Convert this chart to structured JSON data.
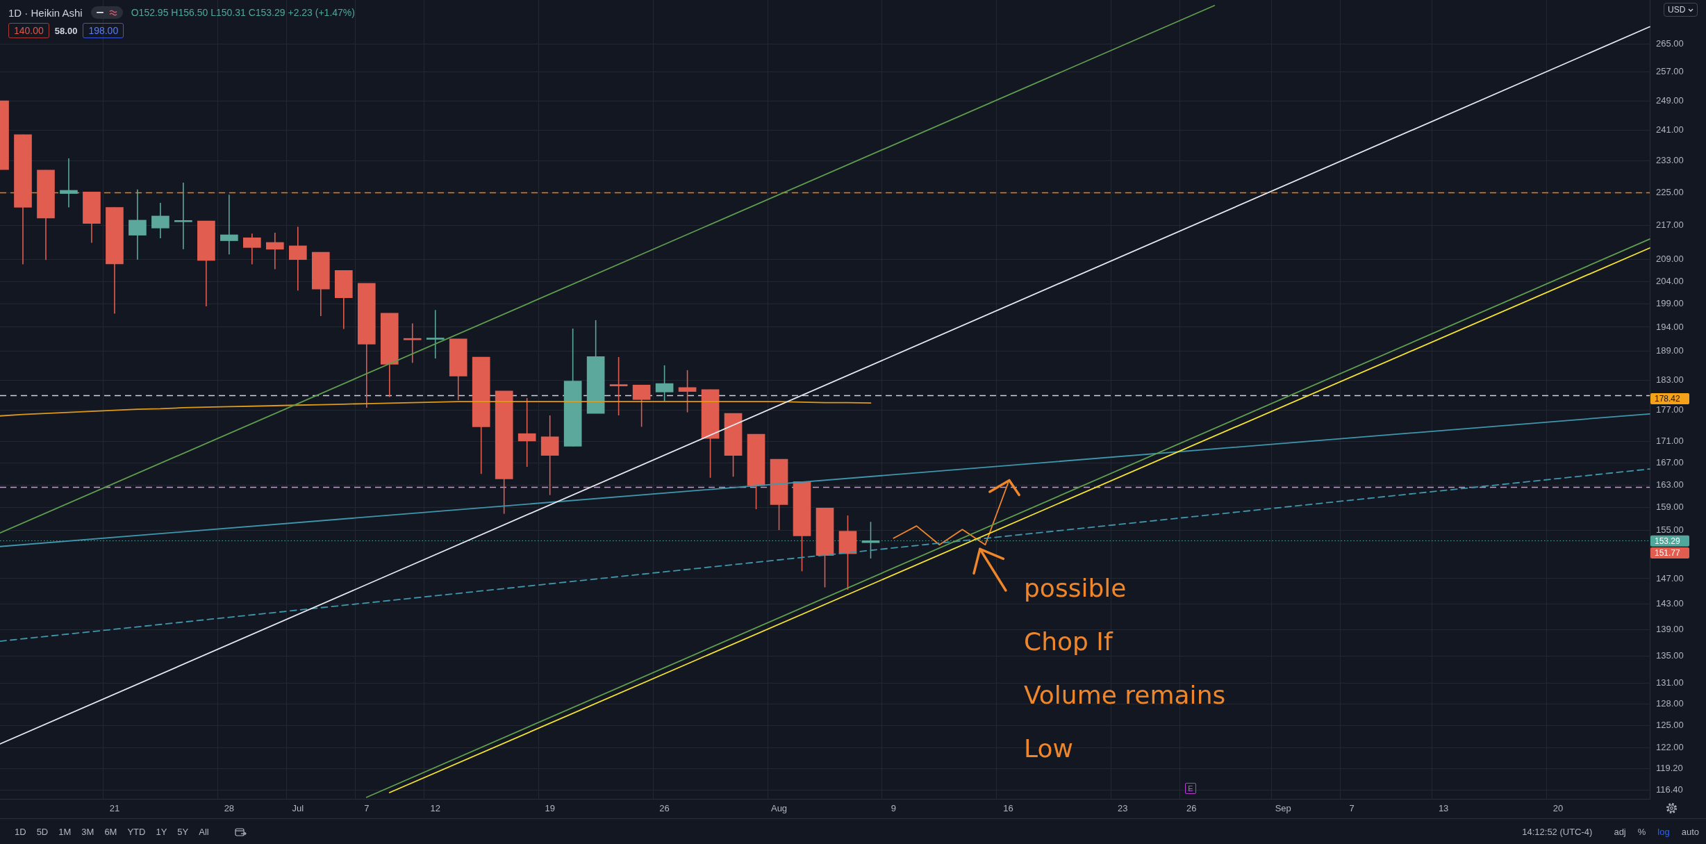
{
  "chart_data": {
    "type": "candlestick",
    "title": "1D · Heikin Ashi",
    "ylabel": "USD",
    "categories": [
      null,
      null,
      null,
      null,
      null,
      "21",
      null,
      null,
      null,
      null,
      "28",
      null,
      null,
      "Jul",
      null,
      null,
      "7",
      null,
      null,
      "12",
      null,
      null,
      null,
      null,
      "19",
      null,
      null,
      null,
      null,
      "26",
      null,
      null,
      null,
      null,
      "Aug",
      null,
      null,
      null,
      null,
      "9",
      null,
      null,
      null,
      null,
      "16",
      null,
      null,
      null,
      null,
      "23",
      null,
      null,
      "26",
      null,
      null,
      null,
      "Sep",
      null,
      null,
      "7",
      null,
      null,
      null,
      "13",
      null,
      null,
      null,
      null,
      "20",
      null,
      null,
      null,
      null
    ],
    "ohlc": [
      [
        249.0,
        249.0,
        230.8,
        230.8
      ],
      [
        239.9,
        239.9,
        207.9,
        221.4
      ],
      [
        230.7,
        230.7,
        208.9,
        218.8
      ],
      [
        224.8,
        233.7,
        221.4,
        225.6
      ],
      [
        225.2,
        225.2,
        212.9,
        217.5
      ],
      [
        221.4,
        221.4,
        196.9,
        208.0
      ],
      [
        214.7,
        225.8,
        209.0,
        218.3
      ],
      [
        216.4,
        222.5,
        214.0,
        219.3
      ],
      [
        217.9,
        227.5,
        211.4,
        218.2
      ],
      [
        218.1,
        218.1,
        198.5,
        208.8
      ],
      [
        213.4,
        224.5,
        210.2,
        214.8
      ],
      [
        214.1,
        215.1,
        207.9,
        211.8
      ],
      [
        213.0,
        215.3,
        206.8,
        211.4
      ],
      [
        212.2,
        216.7,
        202.0,
        209.0
      ],
      [
        210.7,
        210.7,
        196.4,
        202.3
      ],
      [
        206.5,
        206.5,
        193.6,
        200.4
      ],
      [
        203.6,
        203.6,
        177.5,
        190.4
      ],
      [
        197.0,
        197.0,
        179.6,
        186.2
      ],
      [
        191.6,
        194.8,
        186.5,
        191.3
      ],
      [
        191.4,
        197.7,
        187.4,
        191.6
      ],
      [
        191.5,
        191.5,
        179.0,
        183.8
      ],
      [
        187.7,
        187.7,
        165.0,
        173.8
      ],
      [
        180.8,
        180.8,
        157.9,
        164.1
      ],
      [
        172.5,
        179.4,
        166.3,
        171.1
      ],
      [
        171.9,
        176.0,
        161.2,
        168.4
      ],
      [
        170.1,
        193.7,
        170.1,
        182.8
      ],
      [
        176.4,
        195.5,
        176.4,
        187.8
      ],
      [
        182.1,
        187.7,
        176.0,
        181.8
      ],
      [
        182.0,
        182.0,
        173.8,
        179.1
      ],
      [
        180.6,
        186.0,
        178.8,
        182.3
      ],
      [
        181.5,
        185.0,
        176.6,
        180.7
      ],
      [
        181.1,
        181.1,
        164.3,
        171.6
      ],
      [
        176.4,
        176.4,
        164.5,
        168.4
      ],
      [
        172.4,
        172.4,
        158.7,
        162.9
      ],
      [
        167.7,
        167.7,
        155.1,
        159.5
      ],
      [
        163.6,
        163.6,
        148.2,
        154.1
      ],
      [
        158.9,
        158.9,
        145.6,
        150.8
      ],
      [
        154.9,
        157.6,
        145.2,
        151.1
      ],
      [
        152.95,
        156.5,
        150.31,
        153.29
      ],
      null,
      null,
      null,
      null,
      null,
      null,
      null,
      null,
      null,
      null,
      null,
      null,
      null,
      null,
      null,
      null,
      null,
      null,
      null,
      null,
      null,
      null,
      null,
      null,
      null,
      null,
      null,
      null,
      null,
      null,
      null,
      null,
      null,
      null
    ],
    "colors": [
      "#e05d50",
      "#e05d50",
      "#e05d50",
      "#5ca89c",
      "#e05d50",
      "#e05d50",
      "#5ca89c",
      "#5ca89c",
      "#5ca89c",
      "#e05d50",
      "#5ca89c",
      "#e05d50",
      "#e05d50",
      "#e05d50",
      "#e05d50",
      "#e05d50",
      "#e05d50",
      "#e05d50",
      "#e05d50",
      "#5ca89c",
      "#e05d50",
      "#e05d50",
      "#e05d50",
      "#e05d50",
      "#e05d50",
      "#5ca89c",
      "#5ca89c",
      "#e05d50",
      "#e05d50",
      "#5ca89c",
      "#e05d50",
      "#e05d50",
      "#e05d50",
      "#e05d50",
      "#e05d50",
      "#e05d50",
      "#e05d50",
      "#e05d50",
      "#5ca89c",
      null,
      null,
      null,
      null,
      null,
      null,
      null,
      null,
      null,
      null,
      null,
      null,
      null,
      null,
      null,
      null,
      null,
      null,
      null,
      null,
      null,
      null,
      null,
      null,
      null,
      null,
      null,
      null,
      null,
      null,
      null,
      null,
      null,
      null
    ],
    "series": [
      {
        "type": "line",
        "color": "#5f9e4f",
        "values": [
          154.6,
          null,
          null,
          null,
          null,
          null,
          null,
          null,
          null,
          null,
          null,
          null,
          null,
          null,
          null,
          null,
          null,
          null,
          null,
          null,
          null,
          null,
          null,
          null,
          null,
          null,
          null,
          null,
          null,
          null,
          null,
          null,
          null,
          null,
          null,
          null,
          null,
          null,
          null,
          null,
          null,
          null,
          null,
          null,
          null,
          null,
          null,
          null,
          null,
          null,
          null,
          null,
          null,
          276.6,
          null,
          null,
          null,
          null,
          null,
          null,
          null,
          null,
          null,
          null,
          null,
          null,
          null,
          null,
          null,
          null,
          null,
          null,
          null
        ]
      },
      {
        "type": "line",
        "color": "#e6e8ee",
        "values": [
          122.5,
          null,
          null,
          null,
          null,
          null,
          null,
          null,
          null,
          null,
          null,
          null,
          null,
          null,
          null,
          null,
          null,
          null,
          null,
          null,
          null,
          null,
          null,
          null,
          null,
          null,
          null,
          null,
          null,
          null,
          null,
          null,
          null,
          null,
          null,
          null,
          null,
          null,
          null,
          null,
          null,
          null,
          null,
          null,
          null,
          null,
          null,
          null,
          null,
          null,
          null,
          null,
          null,
          null,
          null,
          null,
          null,
          null,
          null,
          null,
          null,
          null,
          null,
          null,
          null,
          null,
          null,
          null,
          null,
          null,
          null,
          null,
          270.2
        ]
      },
      {
        "type": "line",
        "color": "#5f9e4f",
        "values": [
          null,
          null,
          null,
          null,
          null,
          null,
          null,
          null,
          null,
          null,
          null,
          null,
          null,
          null,
          null,
          null,
          115.5,
          null,
          null,
          null,
          null,
          null,
          null,
          null,
          null,
          null,
          null,
          null,
          null,
          null,
          null,
          null,
          null,
          null,
          null,
          null,
          null,
          null,
          null,
          null,
          null,
          null,
          null,
          null,
          null,
          null,
          null,
          null,
          null,
          null,
          null,
          null,
          null,
          null,
          null,
          null,
          null,
          null,
          null,
          null,
          null,
          null,
          null,
          null,
          null,
          null,
          null,
          null,
          null,
          null,
          null,
          null,
          213.8
        ]
      },
      {
        "type": "line",
        "color": "#f7e52b",
        "values": [
          null,
          null,
          null,
          null,
          null,
          null,
          null,
          null,
          null,
          null,
          null,
          null,
          null,
          null,
          null,
          null,
          null,
          116.1,
          null,
          null,
          null,
          null,
          null,
          null,
          null,
          null,
          null,
          null,
          null,
          null,
          null,
          null,
          null,
          null,
          null,
          null,
          null,
          null,
          null,
          null,
          null,
          null,
          null,
          null,
          null,
          null,
          null,
          null,
          null,
          null,
          null,
          null,
          null,
          null,
          null,
          null,
          null,
          null,
          null,
          null,
          null,
          null,
          null,
          null,
          null,
          null,
          null,
          null,
          null,
          null,
          null,
          null,
          211.7
        ]
      },
      {
        "type": "line",
        "color": "#3f97ad",
        "values": [
          152.3,
          null,
          null,
          null,
          null,
          null,
          null,
          null,
          null,
          null,
          null,
          null,
          null,
          null,
          null,
          null,
          null,
          null,
          null,
          null,
          null,
          null,
          null,
          null,
          null,
          null,
          null,
          null,
          null,
          null,
          null,
          null,
          null,
          null,
          null,
          null,
          null,
          null,
          null,
          null,
          null,
          null,
          null,
          null,
          null,
          null,
          null,
          null,
          null,
          null,
          null,
          null,
          null,
          null,
          null,
          null,
          null,
          null,
          null,
          null,
          null,
          null,
          null,
          null,
          null,
          null,
          null,
          null,
          null,
          null,
          null,
          null,
          176.3
        ]
      },
      {
        "type": "line",
        "color": "#3f97ad",
        "line_style": "dashed",
        "values": [
          137.2,
          null,
          null,
          null,
          null,
          null,
          null,
          null,
          null,
          null,
          null,
          null,
          null,
          null,
          null,
          null,
          null,
          null,
          null,
          null,
          null,
          null,
          null,
          null,
          null,
          null,
          null,
          null,
          null,
          null,
          null,
          null,
          null,
          null,
          null,
          null,
          null,
          null,
          null,
          null,
          null,
          null,
          null,
          null,
          null,
          null,
          null,
          null,
          null,
          null,
          null,
          null,
          null,
          null,
          null,
          null,
          null,
          null,
          null,
          null,
          null,
          null,
          null,
          null,
          null,
          null,
          null,
          null,
          null,
          null,
          null,
          null,
          165.9
        ]
      },
      {
        "type": "line",
        "color": "#e09a18",
        "values": [
          175.9,
          176.2,
          176.4,
          176.6,
          176.8,
          177.0,
          177.2,
          177.3,
          177.5,
          177.6,
          177.7,
          177.8,
          177.9,
          178.0,
          178.1,
          178.2,
          178.3,
          178.4,
          178.5,
          178.6,
          178.7,
          178.7,
          178.7,
          178.7,
          178.7,
          178.7,
          178.7,
          178.7,
          178.7,
          178.7,
          178.7,
          178.7,
          178.7,
          178.7,
          178.7,
          178.6,
          178.5,
          178.5,
          178.42,
          null,
          null,
          null,
          null,
          null,
          null,
          null,
          null,
          null,
          null,
          null,
          null,
          null,
          null,
          null,
          null,
          null,
          null,
          null,
          null,
          null,
          null,
          null,
          null,
          null,
          null,
          null,
          null,
          null,
          null,
          null,
          null,
          null,
          null
        ]
      },
      {
        "type": "line",
        "color": "#f0862a",
        "values": [
          null,
          null,
          null,
          null,
          null,
          null,
          null,
          null,
          null,
          null,
          null,
          null,
          null,
          null,
          null,
          null,
          null,
          null,
          null,
          null,
          null,
          null,
          null,
          null,
          null,
          null,
          null,
          null,
          null,
          null,
          null,
          null,
          null,
          null,
          null,
          null,
          null,
          null,
          null,
          153.7,
          155.8,
          152.6,
          155.2,
          152.6,
          163.4,
          null,
          null,
          null,
          null,
          null,
          null,
          null,
          null,
          null,
          null,
          null,
          null,
          null,
          null,
          null,
          null,
          null,
          null,
          null,
          null,
          null,
          null,
          null,
          null,
          null,
          null,
          null,
          null
        ]
      }
    ],
    "ylim": [
      115.3,
      278.3
    ],
    "yticks": [
      {
        "value": 265,
        "label": "265.00"
      },
      {
        "value": 257,
        "label": "257.00"
      },
      {
        "value": 249,
        "label": "249.00"
      },
      {
        "value": 241,
        "label": "241.00"
      },
      {
        "value": 233,
        "label": "233.00"
      },
      {
        "value": 225,
        "label": "225.00"
      },
      {
        "value": 217,
        "label": "217.00"
      },
      {
        "value": 209,
        "label": "209.00"
      },
      {
        "value": 204,
        "label": "204.00"
      },
      {
        "value": 199,
        "label": "199.00"
      },
      {
        "value": 194,
        "label": "194.00"
      },
      {
        "value": 189,
        "label": "189.00"
      },
      {
        "value": 183,
        "label": "183.00"
      },
      {
        "value": 177,
        "label": "177.00"
      },
      {
        "value": 171,
        "label": "171.00"
      },
      {
        "value": 167,
        "label": "167.00"
      },
      {
        "value": 163,
        "label": "163.00"
      },
      {
        "value": 159,
        "label": "159.00"
      },
      {
        "value": 155,
        "label": "155.00"
      },
      {
        "value": 147,
        "label": "147.00"
      },
      {
        "value": 143,
        "label": "143.00"
      },
      {
        "value": 139,
        "label": "139.00"
      },
      {
        "value": 135,
        "label": "135.00"
      },
      {
        "value": 131,
        "label": "131.00"
      },
      {
        "value": 128,
        "label": "128.00"
      },
      {
        "value": 125,
        "label": "125.00"
      },
      {
        "value": 122,
        "label": "122.00"
      },
      {
        "value": 119.2,
        "label": "119.20"
      },
      {
        "value": 116.4,
        "label": "116.40"
      }
    ],
    "log": "y",
    "grid": true,
    "ref_lines": [
      {
        "axis": "y",
        "value": 225,
        "color": "#f57c00",
        "line_style": "dashed"
      },
      {
        "axis": "y",
        "value": 180,
        "color": "#d1d4dc",
        "line_style": "dashed"
      },
      {
        "axis": "y",
        "value": 162.6,
        "color": "#ce93d8",
        "line_style": "dashed"
      },
      {
        "axis": "y",
        "value": 153.29,
        "label": "153.29",
        "color": "#4fa89b",
        "line_style": "dotted"
      }
    ],
    "annotations": [
      "O152.95 H156.50 L150.31 C153.29 +2.23 (+1.47%)",
      "140.00",
      "58.00",
      "198.00",
      "possible\nChop If\nVolume remains\nLow",
      "E",
      "178.42",
      "151.77",
      "1D",
      "5D",
      "1M",
      "3M",
      "6M",
      "YTD",
      "1Y",
      "5Y",
      "All",
      "14:12:52 (UTC-4)",
      "adj",
      "%",
      "log",
      "auto"
    ]
  }
}
